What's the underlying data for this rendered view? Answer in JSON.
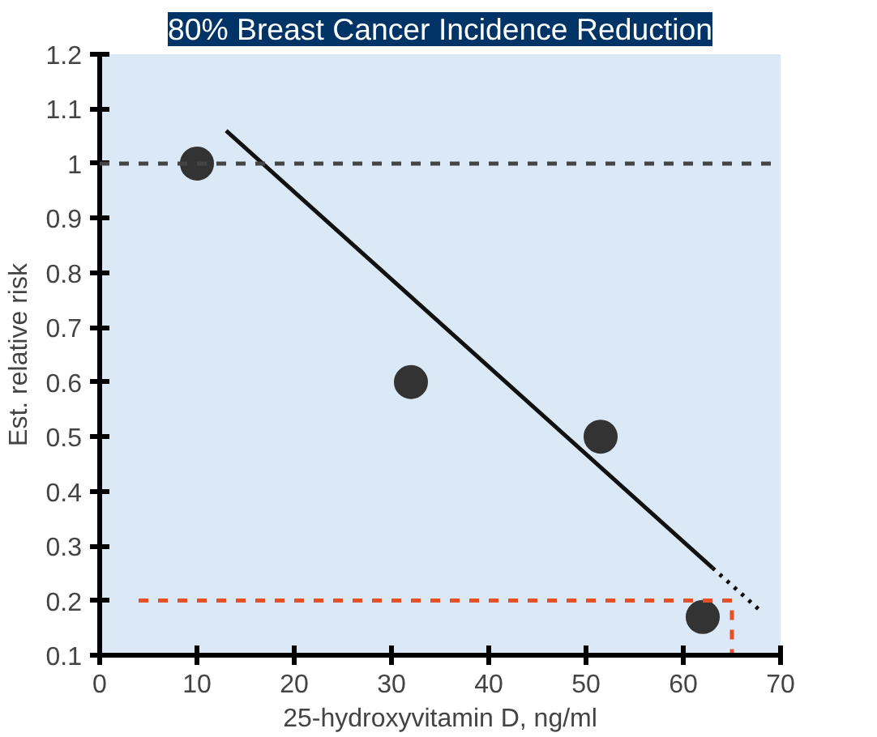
{
  "chart_data": {
    "type": "scatter",
    "title": "80% Breast Cancer Incidence Reduction",
    "xlabel": "25-hydroxyvitamin D, ng/ml",
    "ylabel": "Est. relative risk",
    "x": [
      10,
      32,
      51.5,
      62
    ],
    "series": [
      {
        "color": "#333333",
        "values": [
          1.0,
          0.6,
          0.5,
          0.17
        ],
        "marker": "circle"
      },
      {
        "type": "line",
        "color": "#111111",
        "x": [
          13,
          63
        ],
        "values": [
          1.06,
          0.26
        ],
        "line_style": "solid"
      },
      {
        "type": "line",
        "color": "#111111",
        "x": [
          63,
          68
        ],
        "values": [
          0.26,
          0.18
        ],
        "line_style": "dotted"
      },
      {
        "type": "line",
        "color": "#e8502a",
        "x": [
          4,
          65,
          65
        ],
        "values": [
          0.2,
          0.2,
          0.1
        ],
        "line_style": "dashed"
      }
    ],
    "ref_lines": [
      {
        "axis": "y",
        "value": 1,
        "color": "#444444",
        "line_style": "dashed"
      }
    ],
    "xlim": [
      0,
      70
    ],
    "xticks": [
      0,
      10,
      20,
      30,
      40,
      50,
      60,
      70
    ],
    "ylim": [
      0.1,
      1.2
    ],
    "yticks": [
      0.1,
      0.2,
      0.3,
      0.4,
      0.5,
      0.6,
      0.7,
      0.8,
      0.9,
      1,
      1.1,
      1.2
    ],
    "grid": false
  }
}
